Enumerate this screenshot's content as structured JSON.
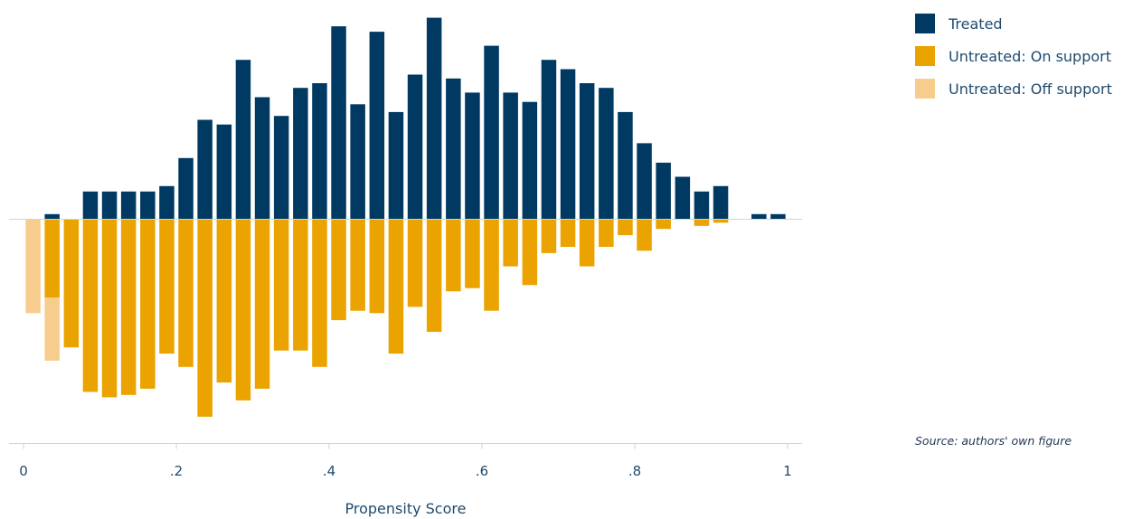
{
  "chart_data": {
    "type": "bar",
    "xlabel": "Propensity Score",
    "xlim": [
      0,
      1
    ],
    "xticks": [
      {
        "value": 0,
        "label": "0"
      },
      {
        "value": 0.2,
        "label": ".2"
      },
      {
        "value": 0.4,
        "label": ".4"
      },
      {
        "value": 0.6,
        "label": ".6"
      },
      {
        "value": 0.8,
        "label": ".8"
      },
      {
        "value": 1,
        "label": "1"
      }
    ],
    "bin_width": 0.025,
    "ylim": [
      -0.25,
      0.26
    ],
    "x": [
      0.0125,
      0.0375,
      0.0625,
      0.0875,
      0.1125,
      0.1375,
      0.1625,
      0.1875,
      0.2125,
      0.2375,
      0.2625,
      0.2875,
      0.3125,
      0.3375,
      0.3625,
      0.3875,
      0.4125,
      0.4375,
      0.4625,
      0.4875,
      0.5125,
      0.5375,
      0.5625,
      0.5875,
      0.6125,
      0.6375,
      0.6625,
      0.6875,
      0.7125,
      0.7375,
      0.7625,
      0.7875,
      0.8125,
      0.8375,
      0.8625,
      0.8875,
      0.9125,
      0.9375,
      0.9625,
      0.9875
    ],
    "series": [
      {
        "name": "Treated",
        "color": "#003a63",
        "values": [
          0,
          0.006,
          0,
          0.035,
          0.035,
          0.035,
          0.035,
          0.042,
          0.078,
          0.127,
          0.121,
          0.204,
          0.156,
          0.132,
          0.168,
          0.174,
          0.247,
          0.147,
          0.24,
          0.137,
          0.185,
          0.258,
          0.18,
          0.162,
          0.222,
          0.162,
          0.15,
          0.204,
          0.192,
          0.174,
          0.168,
          0.137,
          0.097,
          0.072,
          0.054,
          0.035,
          0.042,
          0,
          0.006,
          0.006
        ]
      },
      {
        "name": "Untreated: On support",
        "color": "#eaa300",
        "values": [
          0,
          -0.101,
          -0.165,
          -0.222,
          -0.229,
          -0.226,
          -0.218,
          -0.173,
          -0.19,
          -0.254,
          -0.21,
          -0.233,
          -0.218,
          -0.169,
          -0.169,
          -0.19,
          -0.13,
          -0.118,
          -0.121,
          -0.173,
          -0.113,
          -0.145,
          -0.093,
          -0.089,
          -0.118,
          -0.061,
          -0.085,
          -0.044,
          -0.036,
          -0.061,
          -0.036,
          -0.021,
          -0.041,
          -0.013,
          0,
          -0.009,
          -0.005,
          0,
          0,
          0
        ]
      },
      {
        "name": "Untreated: Off support",
        "color": "#f7cd8e",
        "values": [
          -0.121,
          -0.081,
          0,
          0,
          0,
          0,
          0,
          0,
          0,
          0,
          0,
          0,
          0,
          0,
          0,
          0,
          0,
          0,
          0,
          0,
          0,
          0,
          0,
          0,
          0,
          0,
          0,
          0,
          0,
          0,
          0,
          0,
          0,
          0,
          0,
          0,
          0,
          0,
          0,
          0
        ]
      }
    ],
    "legend_position": "top-right",
    "grid": false
  },
  "source_note": "Source: authors' own figure"
}
